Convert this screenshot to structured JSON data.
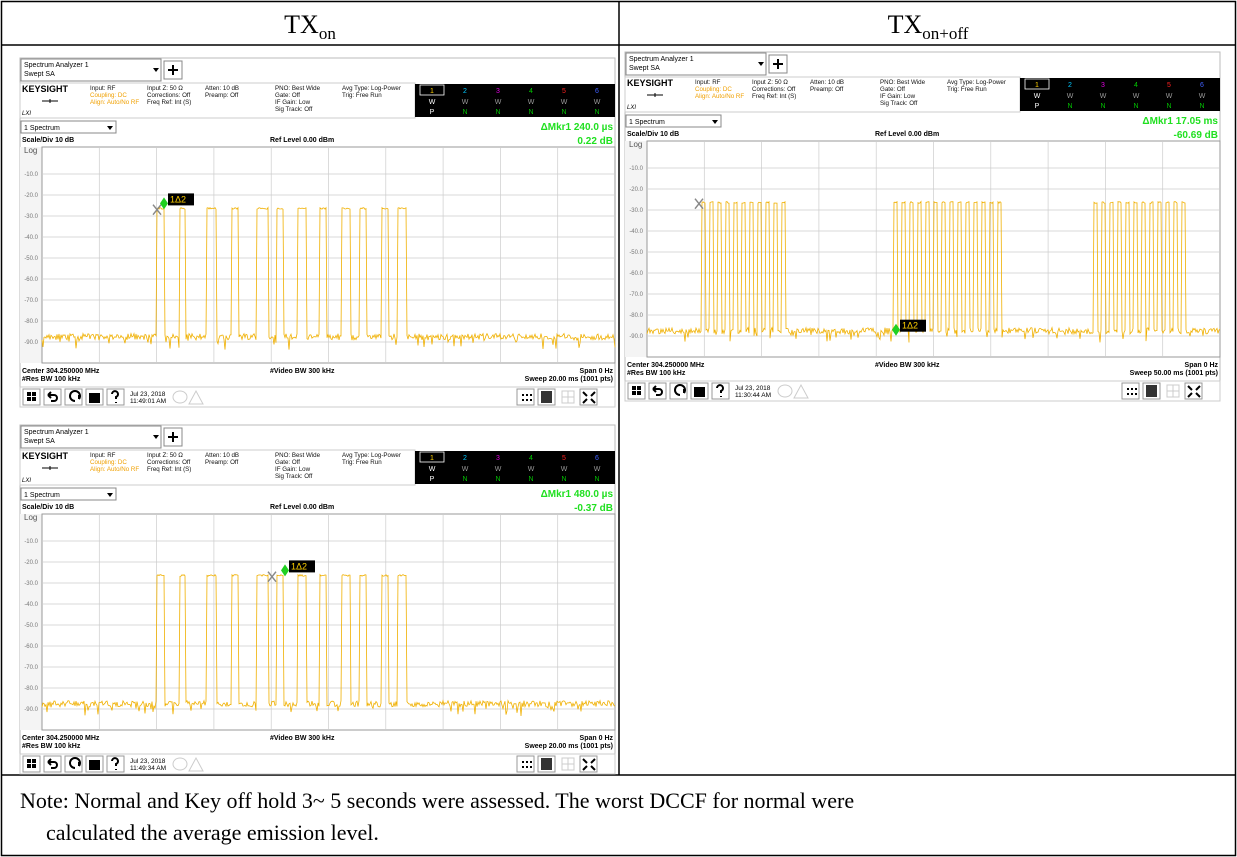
{
  "header": [
    {
      "text": "TX",
      "sub": "on"
    },
    {
      "text": "TX",
      "sub": "on+off"
    }
  ],
  "screens": [
    {
      "app": "Spectrum Analyzer 1",
      "mode": "Swept SA",
      "brand": "KEYSIGHT",
      "lxi": "LXI",
      "settings": [
        [
          "Input: RF",
          "Coupling: DC",
          "Align: Auto/No RF"
        ],
        [
          "Input Z: 50 Ω",
          "Corrections: Off",
          "Freq Ref: Int (S)"
        ],
        [
          "Atten: 10 dB",
          "Preamp: Off"
        ],
        [
          "PNO: Best Wide",
          "Gate: Off",
          "IF Gain: Low",
          "Sig Track: Off"
        ],
        [
          "Avg Type: Log-Power",
          "Trig: Free Run"
        ]
      ],
      "traces": [
        "1",
        "2",
        "3",
        "4",
        "5",
        "6"
      ],
      "trace_type": [
        "W",
        "W",
        "W",
        "W",
        "W",
        "W"
      ],
      "detector": [
        "P",
        "N",
        "N",
        "N",
        "N",
        "N"
      ],
      "view": "1 Spectrum",
      "marker": "ΔMkr1  240.0 µs",
      "marker_value": "0.22 dB",
      "scale": "Scale/Div 10 dB",
      "ref": "Ref Level 0.00 dBm",
      "log": "Log",
      "yticks": [
        "-10.0",
        "-20.0",
        "-30.0",
        "-40.0",
        "-50.0",
        "-60.0",
        "-70.0",
        "-80.0",
        "-90.0"
      ],
      "marker_label": "1Δ2",
      "center": "Center 304.250000 MHz",
      "rbw": "#Res BW 100 kHz",
      "vbw": "#Video BW 300 kHz",
      "span": "Span 0 Hz",
      "sweep": "Sweep 20.00 ms (1001 pts)",
      "date": "Jul 23, 2018",
      "time": "11:49:01 AM"
    },
    {
      "app": "Spectrum Analyzer 1",
      "mode": "Swept SA",
      "brand": "KEYSIGHT",
      "lxi": "LXI",
      "settings": [
        [
          "Input: RF",
          "Coupling: DC",
          "Align: Auto/No RF"
        ],
        [
          "Input Z: 50 Ω",
          "Corrections: Off",
          "Freq Ref: Int (S)"
        ],
        [
          "Atten: 10 dB",
          "Preamp: Off"
        ],
        [
          "PNO: Best Wide",
          "Gate: Off",
          "IF Gain: Low",
          "Sig Track: Off"
        ],
        [
          "Avg Type: Log-Power",
          "Trig: Free Run"
        ]
      ],
      "traces": [
        "1",
        "2",
        "3",
        "4",
        "5",
        "6"
      ],
      "trace_type": [
        "W",
        "W",
        "W",
        "W",
        "W",
        "W"
      ],
      "detector": [
        "P",
        "N",
        "N",
        "N",
        "N",
        "N"
      ],
      "view": "1 Spectrum",
      "marker": "ΔMkr1  480.0 µs",
      "marker_value": "-0.37 dB",
      "scale": "Scale/Div 10 dB",
      "ref": "Ref Level 0.00 dBm",
      "log": "Log",
      "yticks": [
        "-10.0",
        "-20.0",
        "-30.0",
        "-40.0",
        "-50.0",
        "-60.0",
        "-70.0",
        "-80.0",
        "-90.0"
      ],
      "marker_label": "1Δ2",
      "center": "Center 304.250000 MHz",
      "rbw": "#Res BW 100 kHz",
      "vbw": "#Video BW 300 kHz",
      "span": "Span 0 Hz",
      "sweep": "Sweep 20.00 ms (1001 pts)",
      "date": "Jul 23, 2018",
      "time": "11:49:34 AM"
    },
    {
      "app": "Spectrum Analyzer 1",
      "mode": "Swept SA",
      "brand": "KEYSIGHT",
      "lxi": "LXI",
      "settings": [
        [
          "Input: RF",
          "Coupling: DC",
          "Align: Auto/No RF"
        ],
        [
          "Input Z: 50 Ω",
          "Corrections: Off",
          "Freq Ref: Int (S)"
        ],
        [
          "Atten: 10 dB",
          "Preamp: Off"
        ],
        [
          "PNO: Best Wide",
          "Gate: Off",
          "IF Gain: Low",
          "Sig Track: Off"
        ],
        [
          "Avg Type: Log-Power",
          "Trig: Free Run"
        ]
      ],
      "traces": [
        "1",
        "2",
        "3",
        "4",
        "5",
        "6"
      ],
      "trace_type": [
        "W",
        "W",
        "W",
        "W",
        "W",
        "W"
      ],
      "detector": [
        "P",
        "N",
        "N",
        "N",
        "N",
        "N"
      ],
      "view": "1 Spectrum",
      "marker": "ΔMkr1  17.05 ms",
      "marker_value": "-60.69 dB",
      "scale": "Scale/Div 10 dB",
      "ref": "Ref Level 0.00 dBm",
      "log": "Log",
      "yticks": [
        "-10.0",
        "-20.0",
        "-30.0",
        "-40.0",
        "-50.0",
        "-60.0",
        "-70.0",
        "-80.0",
        "-90.0"
      ],
      "marker_label": "1Δ2",
      "center": "Center 304.250000 MHz",
      "rbw": "#Res BW 100 kHz",
      "vbw": "#Video BW 300 kHz",
      "span": "Span 0 Hz",
      "sweep": "Sweep 50.00 ms (1001 pts)",
      "date": "Jul 23, 2018",
      "time": "11:30:44 AM"
    }
  ],
  "note": [
    "Note: Normal and Key off hold 3~ 5 seconds were assessed. The worst DCCF for normal were",
    "calculated the average emission level."
  ]
}
